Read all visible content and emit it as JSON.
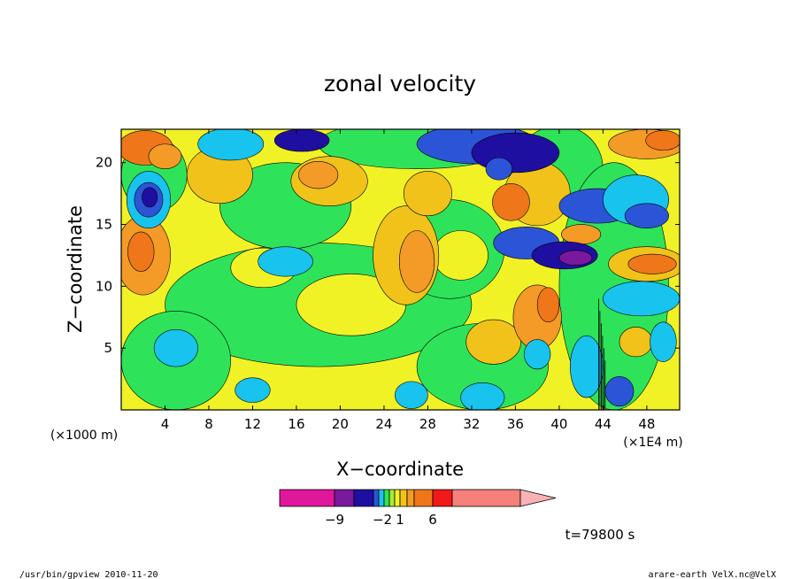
{
  "chart_data": {
    "type": "heatmap",
    "title": "zonal velocity",
    "xlabel": "X−coordinate",
    "ylabel": "Z−coordinate",
    "x_unit_label": "(×1E4 m)",
    "y_unit_label": "(×1000 m)",
    "x_ticks": [
      4,
      8,
      12,
      16,
      20,
      24,
      28,
      32,
      36,
      40,
      44,
      48
    ],
    "y_ticks": [
      5,
      10,
      15,
      20
    ],
    "xlim": [
      0,
      51
    ],
    "ylim": [
      0,
      22.7
    ],
    "colorbar": {
      "labels": [
        {
          "text": "−9",
          "value": -9
        },
        {
          "text": "−2",
          "value": -2
        },
        {
          "text": "1",
          "value": 1
        },
        {
          "text": "6",
          "value": 6
        }
      ],
      "colors": [
        "#e0169c",
        "#7a199d",
        "#1f0fa0",
        "#2b55d6",
        "#18c3ee",
        "#2ee35a",
        "#a9ec2c",
        "#f1f225",
        "#f1c219",
        "#f39b26",
        "#ef7719",
        "#f21919",
        "#f6807a",
        "#f9b3b6"
      ]
    },
    "time_label": "t=79800 s"
  },
  "footer": {
    "left": "/usr/bin/gpview   2010-11-20",
    "right": "arare-earth_VelX.nc@VelX"
  }
}
